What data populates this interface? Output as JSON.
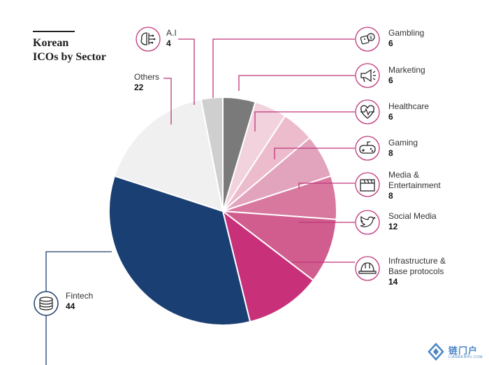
{
  "title_lines": [
    "Korean",
    "ICOs by Sector"
  ],
  "colors": {
    "connector_pink": "#c0357a",
    "connector_dark": "#1d3e6e",
    "icon_ring_pink": "#c0357a",
    "icon_ring_dark": "#1d3e6e"
  },
  "chart_data": {
    "type": "pie",
    "title": "Korean ICOs by Sector",
    "slices": [
      {
        "name": "Gambling",
        "value": 6,
        "color": "#7a7a7a",
        "icon": "dice-money-icon"
      },
      {
        "name": "Marketing",
        "value": 6,
        "color": "#f2d2dc",
        "icon": "megaphone-icon"
      },
      {
        "name": "Healthcare",
        "value": 6,
        "color": "#ecbccd",
        "icon": "heartbeat-icon"
      },
      {
        "name": "Gaming",
        "value": 8,
        "color": "#e2a3bc",
        "icon": "gamepad-icon"
      },
      {
        "name": "Media & Entertainment",
        "value": 8,
        "color": "#d9789f",
        "icon": "clapperboard-icon"
      },
      {
        "name": "Social Media",
        "value": 12,
        "color": "#d05d8e",
        "icon": "twitter-bird-icon"
      },
      {
        "name": "Infrastructure & Base protocols",
        "value": 14,
        "color": "#c8317a",
        "icon": "hardhat-icon"
      },
      {
        "name": "Fintech",
        "value": 44,
        "color": "#1a3f72",
        "icon": "coins-stack-icon"
      },
      {
        "name": "Others",
        "value": 22,
        "color": "#f0f0f0",
        "icon": ""
      },
      {
        "name": "A.I",
        "value": 4,
        "color": "#cfcfcf",
        "icon": "brain-circuit-icon"
      }
    ]
  },
  "labels": {
    "gambling": {
      "name": "Gambling",
      "value": "6"
    },
    "marketing": {
      "name": "Marketing",
      "value": "6"
    },
    "healthcare": {
      "name": "Healthcare",
      "value": "6"
    },
    "gaming": {
      "name": "Gaming",
      "value": "8"
    },
    "media_line1": "Media &",
    "media_line2": "Entertainment",
    "media_value": "8",
    "social": {
      "name": "Social Media",
      "value": "12"
    },
    "infra_line1": "Infrastructure &",
    "infra_line2": "Base protocols",
    "infra_value": "14",
    "fintech": {
      "name": "Fintech",
      "value": "44"
    },
    "others": {
      "name": "Others",
      "value": "22"
    },
    "ai": {
      "name": "A.I",
      "value": "4"
    }
  },
  "watermark": {
    "text": "链门户",
    "sub": "LIANMENHU.COM"
  }
}
